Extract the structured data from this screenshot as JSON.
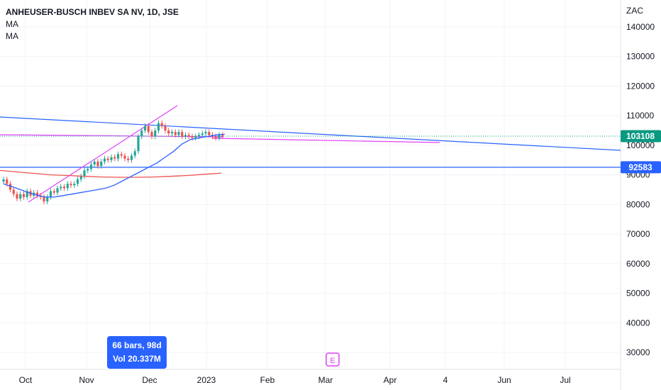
{
  "legend": {
    "title": "ANHEUSER-BUSCH INBEV SA NV, 1D, JSE",
    "indicators": [
      "MA",
      "MA"
    ]
  },
  "chart_data": {
    "type": "candlestick",
    "currency": "ZAC",
    "ylim": [
      25000,
      145000
    ],
    "y_ticks": [
      30000,
      40000,
      50000,
      60000,
      70000,
      80000,
      90000,
      100000,
      110000,
      120000,
      130000,
      140000
    ],
    "x_ticks": [
      "Oct",
      "Nov",
      "Dec",
      "2023",
      "Feb",
      "Mar",
      "Apr",
      "4",
      "Jun",
      "Jul"
    ],
    "last_price": 103108,
    "horizontal_level": 92583,
    "colors": {
      "up": "#26a69a",
      "down": "#ef5350",
      "trendline": "#2962ff",
      "channel": "#e040fb",
      "ma_red": "#ef5350",
      "ma_blue": "#2962ff"
    },
    "candles_close": [
      88500,
      87000,
      85000,
      83500,
      82000,
      83500,
      82500,
      84500,
      83000,
      84000,
      83000,
      82500,
      81000,
      82500,
      84500,
      84000,
      85500,
      86000,
      85500,
      87000,
      86500,
      87000,
      88500,
      89500,
      91500,
      92000,
      93500,
      94500,
      93000,
      94500,
      95500,
      95000,
      96000,
      95500,
      97000,
      96500,
      95500,
      95000,
      96500,
      98000,
      103000,
      105000,
      106500,
      104500,
      103000,
      105000,
      107500,
      106500,
      105000,
      104000,
      104500,
      103500,
      104500,
      103000,
      103500,
      103000,
      102500,
      103000,
      103500,
      104000,
      104500,
      103500,
      103000,
      102500,
      103500,
      103108
    ],
    "ma_short": [
      87000,
      86000,
      85000,
      84000,
      83000,
      82500,
      82500,
      83000,
      83500,
      84000,
      84500,
      85000,
      85500,
      86500,
      88000,
      89500,
      91000,
      92500,
      94000,
      96000,
      98000,
      100500,
      102000,
      102500,
      103000,
      103500,
      103800
    ],
    "ma_long": [
      91500,
      91000,
      90500,
      90000,
      89800,
      89500,
      89300,
      89200,
      89200,
      89300,
      89500,
      89800,
      90200,
      90600
    ],
    "annotations": {
      "bars_label": "66 bars, 98d",
      "volume_label": "Vol 20.337M",
      "event_marker": "E"
    }
  }
}
